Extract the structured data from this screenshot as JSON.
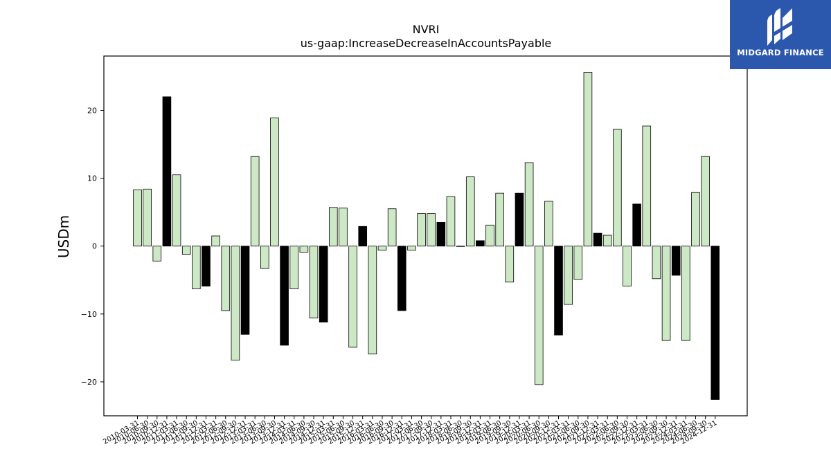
{
  "logo": {
    "text": "MIDGARD FINANCE",
    "icon": "midgard-logo-icon",
    "background": "#2b58ad"
  },
  "chart_data": {
    "type": "bar",
    "title": "NVRI",
    "subtitle": "us-gaap:IncreaseDecreaseInAccountsPayable",
    "xlabel": "",
    "ylabel": "USDm",
    "ylim": [
      -25,
      28
    ],
    "yticks": [
      -20,
      -10,
      0,
      10,
      20
    ],
    "grid": false,
    "colors": {
      "default": "#cde8c5",
      "q4": "#000000",
      "edge": "#000000"
    },
    "categories": [
      "2010-03-31",
      "2010-06-30",
      "2010-09-30",
      "2010-12-31",
      "2011-03-31",
      "2011-06-30",
      "2011-09-30",
      "2011-12-31",
      "2012-03-31",
      "2012-06-30",
      "2012-09-30",
      "2012-12-31",
      "2013-03-31",
      "2013-06-30",
      "2013-09-30",
      "2013-12-31",
      "2014-03-31",
      "2014-06-30",
      "2014-09-30",
      "2014-12-31",
      "2015-03-31",
      "2015-06-30",
      "2015-09-30",
      "2015-12-31",
      "2016-03-31",
      "2016-06-30",
      "2016-09-30",
      "2016-12-31",
      "2017-03-31",
      "2017-06-30",
      "2017-09-30",
      "2017-12-31",
      "2018-03-31",
      "2018-06-30",
      "2018-09-30",
      "2018-12-31",
      "2019-03-31",
      "2019-06-30",
      "2019-09-30",
      "2019-12-31",
      "2020-03-31",
      "2020-06-30",
      "2020-09-30",
      "2020-12-31",
      "2021-03-31",
      "2021-06-30",
      "2021-09-30",
      "2021-12-31",
      "2022-03-31",
      "2022-06-30",
      "2022-09-30",
      "2022-12-31",
      "2023-03-31",
      "2023-06-30",
      "2023-09-30",
      "2023-12-31",
      "2024-03-31",
      "2024-06-30",
      "2024-09-30",
      "2024-12-31"
    ],
    "values": [
      8.3,
      8.4,
      -2.2,
      22.0,
      10.5,
      -1.2,
      -6.3,
      -5.9,
      1.5,
      -9.5,
      -16.8,
      -13.0,
      13.2,
      -3.3,
      18.9,
      -14.6,
      -6.3,
      -0.9,
      -10.6,
      -11.2,
      5.7,
      5.6,
      -14.9,
      2.9,
      -15.9,
      -0.6,
      5.5,
      -9.5,
      -0.6,
      4.8,
      4.8,
      3.5,
      7.3,
      0.0,
      10.2,
      0.8,
      3.1,
      7.8,
      -5.3,
      7.8,
      12.3,
      -20.4,
      6.6,
      -13.1,
      -8.6,
      -4.9,
      25.6,
      1.9,
      1.6,
      17.2,
      -5.9,
      6.2,
      17.7,
      -4.8,
      -13.9,
      -4.3,
      -13.9,
      7.9,
      13.2,
      -22.6
    ],
    "highlighted": [
      false,
      false,
      false,
      true,
      false,
      false,
      false,
      true,
      false,
      false,
      false,
      true,
      false,
      false,
      false,
      true,
      false,
      false,
      false,
      true,
      false,
      false,
      false,
      true,
      false,
      false,
      false,
      true,
      false,
      false,
      false,
      true,
      false,
      false,
      false,
      true,
      false,
      false,
      false,
      true,
      false,
      false,
      false,
      true,
      false,
      false,
      false,
      true,
      false,
      false,
      false,
      true,
      false,
      false,
      false,
      true,
      false,
      false,
      false,
      true
    ]
  }
}
